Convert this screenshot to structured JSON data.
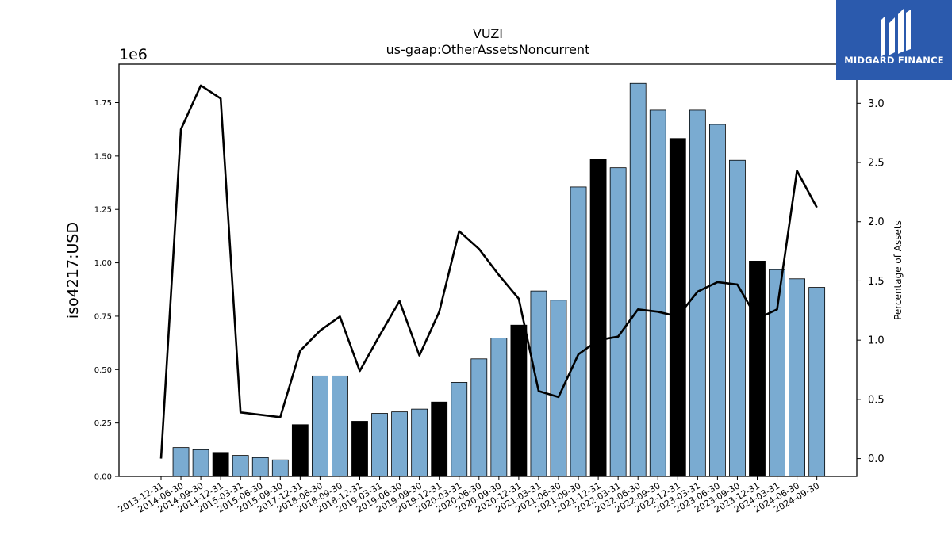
{
  "chart_data": {
    "type": "bar",
    "title": "VUZI",
    "subtitle": "us-gaap:OtherAssetsNoncurrent",
    "ylabel": "iso4217:USD",
    "y2label": "Percentage of Assets",
    "y_offset_text": "1e6",
    "ylim": [
      0,
      1930000
    ],
    "y2lim": [
      -0.15,
      3.33
    ],
    "yticks": [
      "0.00",
      "0.25",
      "0.50",
      "0.75",
      "1.00",
      "1.25",
      "1.50",
      "1.75"
    ],
    "y2ticks": [
      "0.0",
      "0.5",
      "1.0",
      "1.5",
      "2.0",
      "2.5",
      "3.0"
    ],
    "categories": [
      "2013-12-31",
      "2014-06-30",
      "2014-09-30",
      "2014-12-31",
      "2015-03-31",
      "2015-06-30",
      "2015-09-30",
      "2017-12-31",
      "2018-06-30",
      "2018-09-30",
      "2018-12-31",
      "2019-03-31",
      "2019-06-30",
      "2019-09-30",
      "2019-12-31",
      "2020-03-31",
      "2020-06-30",
      "2020-09-30",
      "2020-12-31",
      "2021-03-31",
      "2021-06-30",
      "2021-09-30",
      "2021-12-31",
      "2022-03-31",
      "2022-06-30",
      "2022-09-30",
      "2022-12-31",
      "2023-03-31",
      "2023-06-30",
      "2023-09-30",
      "2023-12-31",
      "2024-03-31",
      "2024-06-30",
      "2024-09-30"
    ],
    "series": [
      {
        "type": "bar",
        "values": [
          0,
          135000,
          125000,
          112000,
          98000,
          88000,
          77000,
          242000,
          470000,
          470000,
          258000,
          295000,
          302000,
          315000,
          348000,
          440000,
          550000,
          648000,
          708000,
          868000,
          825000,
          1355000,
          1485000,
          1445000,
          1840000,
          1715000,
          1582000,
          1715000,
          1648000,
          1480000,
          1008000,
          968000,
          925000,
          885000
        ],
        "highlight": [
          false,
          false,
          false,
          true,
          false,
          false,
          false,
          true,
          false,
          false,
          true,
          false,
          false,
          false,
          true,
          false,
          false,
          false,
          true,
          false,
          false,
          false,
          true,
          false,
          false,
          false,
          true,
          false,
          false,
          false,
          true,
          false,
          false,
          false
        ]
      },
      {
        "type": "line",
        "axis": "right",
        "values": [
          0.0,
          2.78,
          3.15,
          3.04,
          0.39,
          0.37,
          0.35,
          0.91,
          1.08,
          1.2,
          0.74,
          1.04,
          1.33,
          0.87,
          1.24,
          1.92,
          1.77,
          1.55,
          1.35,
          0.57,
          0.52,
          0.88,
          1.0,
          1.03,
          1.26,
          1.24,
          1.2,
          1.41,
          1.49,
          1.47,
          1.18,
          1.26,
          2.43,
          2.12
        ]
      }
    ],
    "colors": {
      "bar": "#7aabd1",
      "bar_highlight": "#000000",
      "line": "#000000"
    },
    "grid": false,
    "legend": "none"
  },
  "logo": {
    "text": "MIDGARD FINANCE",
    "background": "#2b5aad"
  }
}
